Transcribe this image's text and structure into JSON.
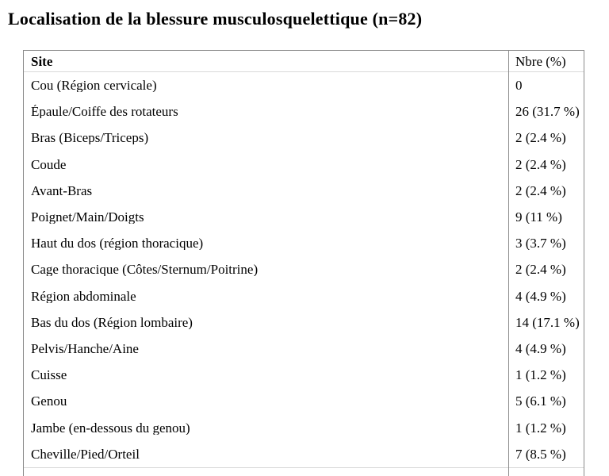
{
  "page": {
    "title": "Localisation de la blessure musculosquelettique (n=82)"
  },
  "table": {
    "headers": {
      "site": "Site",
      "nbre": "Nbre (%)"
    },
    "rows": [
      {
        "site": "Cou (Région cervicale)",
        "nbre": "0"
      },
      {
        "site": "Épaule/Coiffe des rotateurs",
        "nbre": "26 (31.7 %)"
      },
      {
        "site": "Bras (Biceps/Triceps)",
        "nbre": "2 (2.4 %)"
      },
      {
        "site": "Coude",
        "nbre": "2 (2.4 %)"
      },
      {
        "site": "Avant-Bras",
        "nbre": "2 (2.4 %)"
      },
      {
        "site": "Poignet/Main/Doigts",
        "nbre": "9 (11 %)"
      },
      {
        "site": "Haut du dos (région thoracique)",
        "nbre": "3 (3.7 %)"
      },
      {
        "site": "Cage thoracique (Côtes/Sternum/Poitrine)",
        "nbre": "2 (2.4 %)"
      },
      {
        "site": "Région abdominale",
        "nbre": "4 (4.9 %)"
      },
      {
        "site": "Bas du dos (Région lombaire)",
        "nbre": "14 (17.1 %)"
      },
      {
        "site": "Pelvis/Hanche/Aine",
        "nbre": "4 (4.9 %)"
      },
      {
        "site": "Cuisse",
        "nbre": "1 (1.2 %)"
      },
      {
        "site": "Genou",
        "nbre": "5 (6.1 %)"
      },
      {
        "site": "Jambe (en-dessous du genou)",
        "nbre": "1 (1.2 %)"
      },
      {
        "site": "Cheville/Pied/Orteil",
        "nbre": "7 (8.5 %)"
      }
    ],
    "colors": {
      "outer_border": "#8a8a8a",
      "row_divider": "#d9d9d9",
      "text": "#000000",
      "background": "#ffffff"
    }
  }
}
